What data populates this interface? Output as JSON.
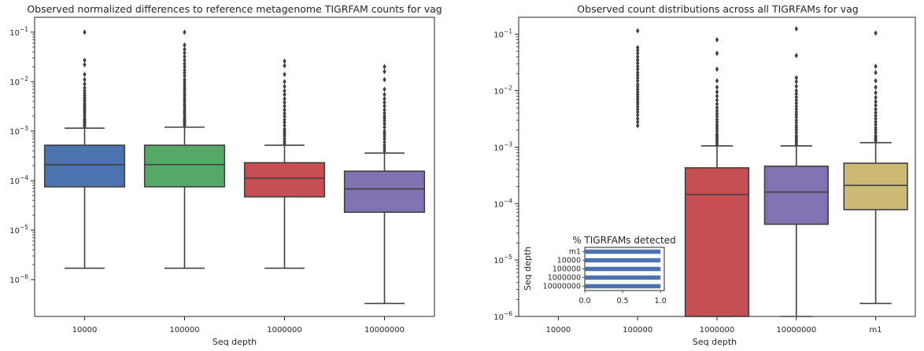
{
  "chart_data": [
    {
      "type": "box",
      "title": "Observed normalized differences to reference metagenome TIGRFAM counts for vag",
      "xlabel": "Seq depth",
      "ylabel": "",
      "yscale": "log",
      "ylim": [
        1.8e-07,
        0.2
      ],
      "yticks": [
        {
          "value": 1e-06,
          "base": "10",
          "exp": "−6"
        },
        {
          "value": 1e-05,
          "base": "10",
          "exp": "−5"
        },
        {
          "value": 0.0001,
          "base": "10",
          "exp": "−4"
        },
        {
          "value": 0.001,
          "base": "10",
          "exp": "−3"
        },
        {
          "value": 0.01,
          "base": "10",
          "exp": "−2"
        },
        {
          "value": 0.1,
          "base": "10",
          "exp": "−1"
        }
      ],
      "categories": [
        "10000",
        "100000",
        "1000000",
        "10000000"
      ],
      "boxes": [
        {
          "color": "#4c72b0",
          "q1": 7.5e-05,
          "median": 0.00021,
          "q3": 0.00052,
          "whislo": 1.7e-06,
          "whishi": 0.00115,
          "outliers": [
            0.1,
            0.027,
            0.022,
            0.014,
            0.011,
            0.009,
            0.0075,
            0.0065,
            0.0058,
            0.0052,
            0.0047,
            0.0043,
            0.004,
            0.0036,
            0.0033,
            0.003,
            0.0028,
            0.0026,
            0.0024,
            0.0022,
            0.002,
            0.0018,
            0.0017,
            0.0016,
            0.0015,
            0.0014,
            0.0013,
            0.00125
          ]
        },
        {
          "color": "#55a868",
          "q1": 7.5e-05,
          "median": 0.00021,
          "q3": 0.00052,
          "whislo": 1.7e-06,
          "whishi": 0.0012,
          "outliers": [
            0.1,
            0.055,
            0.045,
            0.038,
            0.032,
            0.027,
            0.023,
            0.02,
            0.017,
            0.015,
            0.013,
            0.011,
            0.01,
            0.009,
            0.008,
            0.0072,
            0.0065,
            0.0058,
            0.0052,
            0.0047,
            0.0043,
            0.0039,
            0.0035,
            0.0032,
            0.0029,
            0.0026,
            0.0024,
            0.0022,
            0.002,
            0.0018,
            0.0017,
            0.0016,
            0.0015,
            0.0014,
            0.0013
          ]
        },
        {
          "color": "#c44e52",
          "q1": 4.7e-05,
          "median": 0.000112,
          "q3": 0.00023,
          "whislo": 1.7e-06,
          "whishi": 0.00052,
          "outliers": [
            0.026,
            0.021,
            0.014,
            0.01,
            0.008,
            0.0065,
            0.0055,
            0.0045,
            0.0038,
            0.0032,
            0.0027,
            0.0023,
            0.002,
            0.0017,
            0.0015,
            0.0013,
            0.0011,
            0.001,
            0.0009,
            0.0008,
            0.0007,
            0.00062,
            0.00056
          ]
        },
        {
          "color": "#8172b2",
          "q1": 2.3e-05,
          "median": 6.8e-05,
          "q3": 0.000155,
          "whislo": 3.3e-07,
          "whishi": 0.00036,
          "outliers": [
            0.02,
            0.016,
            0.011,
            0.007,
            0.0055,
            0.0045,
            0.0038,
            0.0032,
            0.0027,
            0.0023,
            0.002,
            0.0018,
            0.0016,
            0.0014,
            0.0012,
            0.001,
            0.0009,
            0.0008,
            0.0007,
            0.0006,
            0.00052,
            0.00046,
            0.0004
          ]
        }
      ]
    },
    {
      "type": "box",
      "title": "Observed count distributions across all TIGRFAMs for vag",
      "xlabel": "Seq depth",
      "ylabel": "",
      "yscale": "log",
      "ylim": [
        1e-06,
        0.2
      ],
      "yticks": [
        {
          "value": 1e-06,
          "base": "10",
          "exp": "−6"
        },
        {
          "value": 1e-05,
          "base": "10",
          "exp": "−5"
        },
        {
          "value": 0.0001,
          "base": "10",
          "exp": "−4"
        },
        {
          "value": 0.001,
          "base": "10",
          "exp": "−3"
        },
        {
          "value": 0.01,
          "base": "10",
          "exp": "−2"
        },
        {
          "value": 0.1,
          "base": "10",
          "exp": "−1"
        }
      ],
      "categories": [
        "10000",
        "100000",
        "1000000",
        "10000000",
        "m1"
      ],
      "boxes": [
        null,
        {
          "color": null,
          "q1": null,
          "median": null,
          "q3": null,
          "whislo": null,
          "whishi": null,
          "outliers": [
            0.115,
            0.058,
            0.052,
            0.046,
            0.04,
            0.035,
            0.031,
            0.027,
            0.024,
            0.021,
            0.019,
            0.017,
            0.015,
            0.013,
            0.0118,
            0.0106,
            0.0095,
            0.0086,
            0.0078,
            0.0071,
            0.0064,
            0.0058,
            0.0052,
            0.0047,
            0.0042,
            0.0037,
            0.0032,
            0.0028,
            0.0024
          ]
        },
        {
          "color": "#c44e52",
          "q1": 1e-06,
          "median": 0.000145,
          "q3": 0.00043,
          "whislo": 1e-06,
          "whishi": 0.00105,
          "outliers": [
            0.08,
            0.046,
            0.024,
            0.015,
            0.0115,
            0.0095,
            0.008,
            0.0068,
            0.0058,
            0.005,
            0.0044,
            0.0039,
            0.0035,
            0.0031,
            0.0028,
            0.0025,
            0.0023,
            0.0021,
            0.0019,
            0.0017,
            0.0016,
            0.0015,
            0.0014,
            0.0013,
            0.0012,
            0.0011
          ]
        },
        {
          "color": "#8172b2",
          "q1": 4.3e-05,
          "median": 0.00016,
          "q3": 0.00046,
          "whislo": 1e-06,
          "whishi": 0.00105,
          "outliers": [
            0.125,
            0.042,
            0.017,
            0.0145,
            0.012,
            0.01,
            0.0088,
            0.0077,
            0.0068,
            0.006,
            0.0053,
            0.0047,
            0.0042,
            0.0038,
            0.0034,
            0.003,
            0.0027,
            0.0024,
            0.0022,
            0.002,
            0.0018,
            0.0016,
            0.0015,
            0.0014,
            0.0013,
            0.0012,
            0.0011
          ]
        },
        {
          "color": "#ccb974",
          "q1": 7.8e-05,
          "median": 0.00021,
          "q3": 0.00052,
          "whislo": 1.7e-06,
          "whishi": 0.0012,
          "outliers": [
            0.105,
            0.027,
            0.021,
            0.015,
            0.0115,
            0.0092,
            0.0076,
            0.0064,
            0.0055,
            0.0047,
            0.0041,
            0.0036,
            0.0032,
            0.0028,
            0.0025,
            0.0022,
            0.002,
            0.0018,
            0.0016,
            0.0015,
            0.0014,
            0.0013
          ]
        }
      ]
    },
    {
      "type": "bar",
      "orientation": "horizontal",
      "title": "% TIGRFAMs detected",
      "xlabel": "",
      "ylabel": "Seq depth",
      "categories": [
        "m1",
        "10000",
        "100000",
        "1000000",
        "10000000"
      ],
      "values": [
        1.0,
        1.0,
        1.0,
        1.0,
        1.0
      ],
      "color": "#4c72b0",
      "xlim": [
        0,
        1.05
      ],
      "xticks": [
        "0.0",
        "0.5",
        "1.0"
      ]
    }
  ]
}
